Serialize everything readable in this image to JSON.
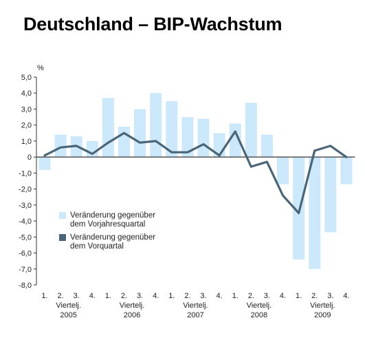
{
  "chart_data": {
    "type": "bar",
    "title": "Deutschland – BIP-Wachstum",
    "ylabel": "%",
    "ylim": [
      -8.0,
      5.0
    ],
    "y_tick_labels": [
      "5,0",
      "4,0",
      "3,0",
      "2,0",
      "1,0",
      "0",
      "-1,0",
      "-2,0",
      "-3,0",
      "-4,0",
      "-5,0",
      "-6,0",
      "-7,0",
      "-8,0"
    ],
    "categories": [
      "1.",
      "2.",
      "3.",
      "4.",
      "1.",
      "2.",
      "3.",
      "4.",
      "1.",
      "2.",
      "3.",
      "4.",
      "1.",
      "2.",
      "3.",
      "4.",
      "1.",
      "2.",
      "3.",
      "4."
    ],
    "period_label": "Viertelj.",
    "years": [
      "2005",
      "2006",
      "2007",
      "2008",
      "2009"
    ],
    "series": [
      {
        "name": "Veränderung gegenüber dem Vorjahresquartal",
        "type": "bar",
        "color": "#cce9fb",
        "values": [
          -0.8,
          1.4,
          1.3,
          1.0,
          3.7,
          1.9,
          3.0,
          4.0,
          3.5,
          2.5,
          2.4,
          1.5,
          2.1,
          3.4,
          1.4,
          -1.7,
          -6.4,
          -7.0,
          -4.7,
          -1.7
        ]
      },
      {
        "name": "Veränderung gegenüber dem Vorquartal",
        "type": "line",
        "color": "#4a6478",
        "values": [
          0.1,
          0.6,
          0.7,
          0.2,
          0.9,
          1.5,
          0.9,
          1.0,
          0.3,
          0.3,
          0.8,
          0.1,
          1.6,
          -0.6,
          -0.3,
          -2.4,
          -3.5,
          0.4,
          0.7,
          0.0
        ]
      }
    ],
    "legend": {
      "position": "lower-left",
      "lines": [
        [
          "Veränderung gegenüber",
          "dem Vorjahresquartal"
        ],
        [
          "Veränderung gegenüber",
          "dem Vorquartal"
        ]
      ]
    },
    "grid": false
  }
}
